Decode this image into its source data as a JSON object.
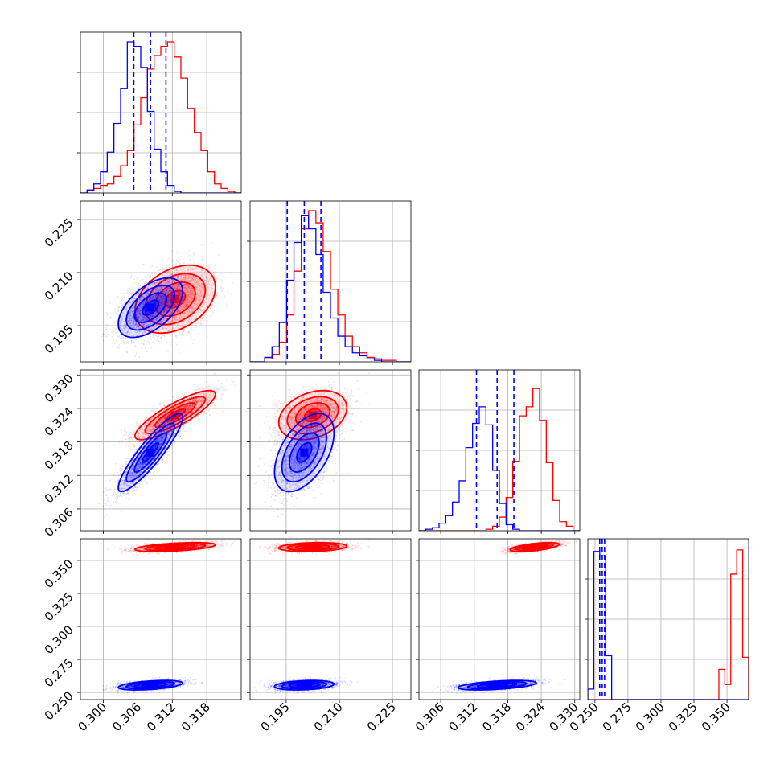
{
  "chart_data": {
    "type": "corner",
    "grid": true,
    "colors": {
      "sample_a": "#ff0000",
      "sample_b": "#0000ff",
      "axes": "#000000",
      "grid": "#b0b0b0"
    },
    "parameters": [
      {
        "range": [
          0.296,
          0.324
        ],
        "ticks": [
          0.3,
          0.306,
          0.312,
          0.318
        ],
        "tick_labels": [
          "0.300",
          "0.306",
          "0.312",
          "0.318"
        ]
      },
      {
        "range": [
          0.1848,
          0.2302
        ],
        "ticks": [
          0.195,
          0.21,
          0.225
        ],
        "tick_labels": [
          "0.195",
          "0.210",
          "0.225"
        ]
      },
      {
        "range": [
          0.3021,
          0.3309
        ],
        "ticks": [
          0.306,
          0.312,
          0.318,
          0.324,
          0.33
        ],
        "tick_labels": [
          "0.306",
          "0.312",
          "0.318",
          "0.324",
          "0.330"
        ]
      },
      {
        "range": [
          0.2446,
          0.3664
        ],
        "ticks": [
          0.25,
          0.275,
          0.3,
          0.325,
          0.35
        ],
        "tick_labels": [
          "0.250",
          "0.275",
          "0.300",
          "0.325",
          "0.350"
        ]
      }
    ],
    "series": [
      {
        "color": "#ff0000",
        "mean": [
          0.3125,
          0.2025,
          0.3228,
          0.3601
        ],
        "std": [
          0.0035,
          0.0048,
          0.0022,
          0.0017
        ],
        "corr": [
          [
            1,
            0.35,
            0.85,
            0.5
          ],
          [
            0.35,
            1,
            0.3,
            0.2
          ],
          [
            0.85,
            0.3,
            1,
            0.6
          ],
          [
            0.5,
            0.2,
            0.6,
            1
          ]
        ],
        "histograms": [
          {
            "edges": [
              0.296,
              0.324
            ],
            "counts": [
              0.0,
              0.02,
              0.03,
              0.05,
              0.06,
              0.11,
              0.18,
              0.28,
              0.45,
              0.63,
              0.82,
              0.91,
              0.97,
              1.0,
              0.9,
              0.76,
              0.56,
              0.4,
              0.28,
              0.14,
              0.06,
              0.03,
              0.01,
              0.0
            ]
          },
          {
            "edges": [
              0.1848,
              0.2302
            ],
            "counts": [
              0.0,
              0.0,
              0.02,
              0.05,
              0.13,
              0.31,
              0.6,
              0.88,
              1.0,
              0.92,
              0.73,
              0.48,
              0.31,
              0.17,
              0.1,
              0.06,
              0.03,
              0.02,
              0.01,
              0.01,
              0.0,
              0.0
            ]
          },
          {
            "edges": [
              0.3021,
              0.3309
            ],
            "counts": [
              0.0,
              0.0,
              0.0,
              0.0,
              0.0,
              0.0,
              0.0,
              0.0,
              0.0,
              0.0,
              0.01,
              0.03,
              0.09,
              0.22,
              0.46,
              0.76,
              0.82,
              0.94,
              0.73,
              0.45,
              0.2,
              0.06,
              0.03,
              0.0
            ]
          },
          {
            "edges": [
              0.2446,
              0.3664
            ],
            "counts": [
              0.0,
              0.0,
              0.0,
              0.0,
              0.0,
              0.0,
              0.0,
              0.0,
              0.0,
              0.0,
              0.0,
              0.0,
              0.0,
              0.0,
              0.0,
              0.0,
              0.0,
              0.0,
              0.0,
              0.0,
              0.0,
              0.0,
              0.2,
              0.1,
              0.83,
              0.99,
              0.28
            ]
          }
        ]
      },
      {
        "color": "#0000ff",
        "mean": [
          0.3082,
          0.2001,
          0.3161,
          0.2555
        ],
        "std": [
          0.0028,
          0.0042,
          0.0035,
          0.0018
        ],
        "corr": [
          [
            1,
            0.55,
            0.9,
            0.45
          ],
          [
            0.55,
            1,
            0.5,
            0.25
          ],
          [
            0.9,
            0.5,
            1,
            0.5
          ],
          [
            0.45,
            0.25,
            0.5,
            1
          ]
        ],
        "histograms": [
          {
            "edges": [
              0.296,
              0.324
            ],
            "counts": [
              0.0,
              0.02,
              0.06,
              0.14,
              0.27,
              0.46,
              0.69,
              1.0,
              0.97,
              0.83,
              0.54,
              0.29,
              0.14,
              0.05,
              0.01,
              0.0,
              0.0,
              0.0,
              0.0,
              0.0,
              0.0,
              0.0,
              0.0,
              0.0
            ]
          },
          {
            "edges": [
              0.1848,
              0.2302
            ],
            "counts": [
              0.0,
              0.0,
              0.03,
              0.1,
              0.26,
              0.54,
              0.79,
              0.97,
              0.88,
              0.71,
              0.46,
              0.29,
              0.17,
              0.1,
              0.06,
              0.04,
              0.02,
              0.01,
              0.0,
              0.0,
              0.0,
              0.0
            ]
          },
          {
            "edges": [
              0.3021,
              0.3309
            ],
            "counts": [
              0.0,
              0.01,
              0.02,
              0.05,
              0.1,
              0.19,
              0.33,
              0.55,
              0.71,
              0.82,
              0.7,
              0.4,
              0.18,
              0.04,
              0.01,
              0.0,
              0.0,
              0.0,
              0.0,
              0.0,
              0.0,
              0.0,
              0.0,
              0.0
            ]
          },
          {
            "edges": [
              0.2446,
              0.3664
            ],
            "counts": [
              0.07,
              0.98,
              0.95,
              0.29,
              0.0,
              0.0,
              0.0,
              0.0,
              0.0,
              0.0,
              0.0,
              0.0,
              0.0,
              0.0,
              0.0,
              0.0,
              0.0,
              0.0,
              0.0,
              0.0,
              0.0,
              0.0,
              0.0,
              0.0,
              0.0,
              0.0,
              0.0
            ]
          }
        ]
      }
    ],
    "quantile_lines": {
      "color": "#0000ff",
      "style": "dashed",
      "values": [
        [
          0.3053,
          0.3082,
          0.3109
        ],
        [
          0.1953,
          0.2001,
          0.2048
        ],
        [
          0.3124,
          0.3161,
          0.3191
        ],
        [
          0.2536,
          0.2555,
          0.2573
        ]
      ]
    }
  }
}
